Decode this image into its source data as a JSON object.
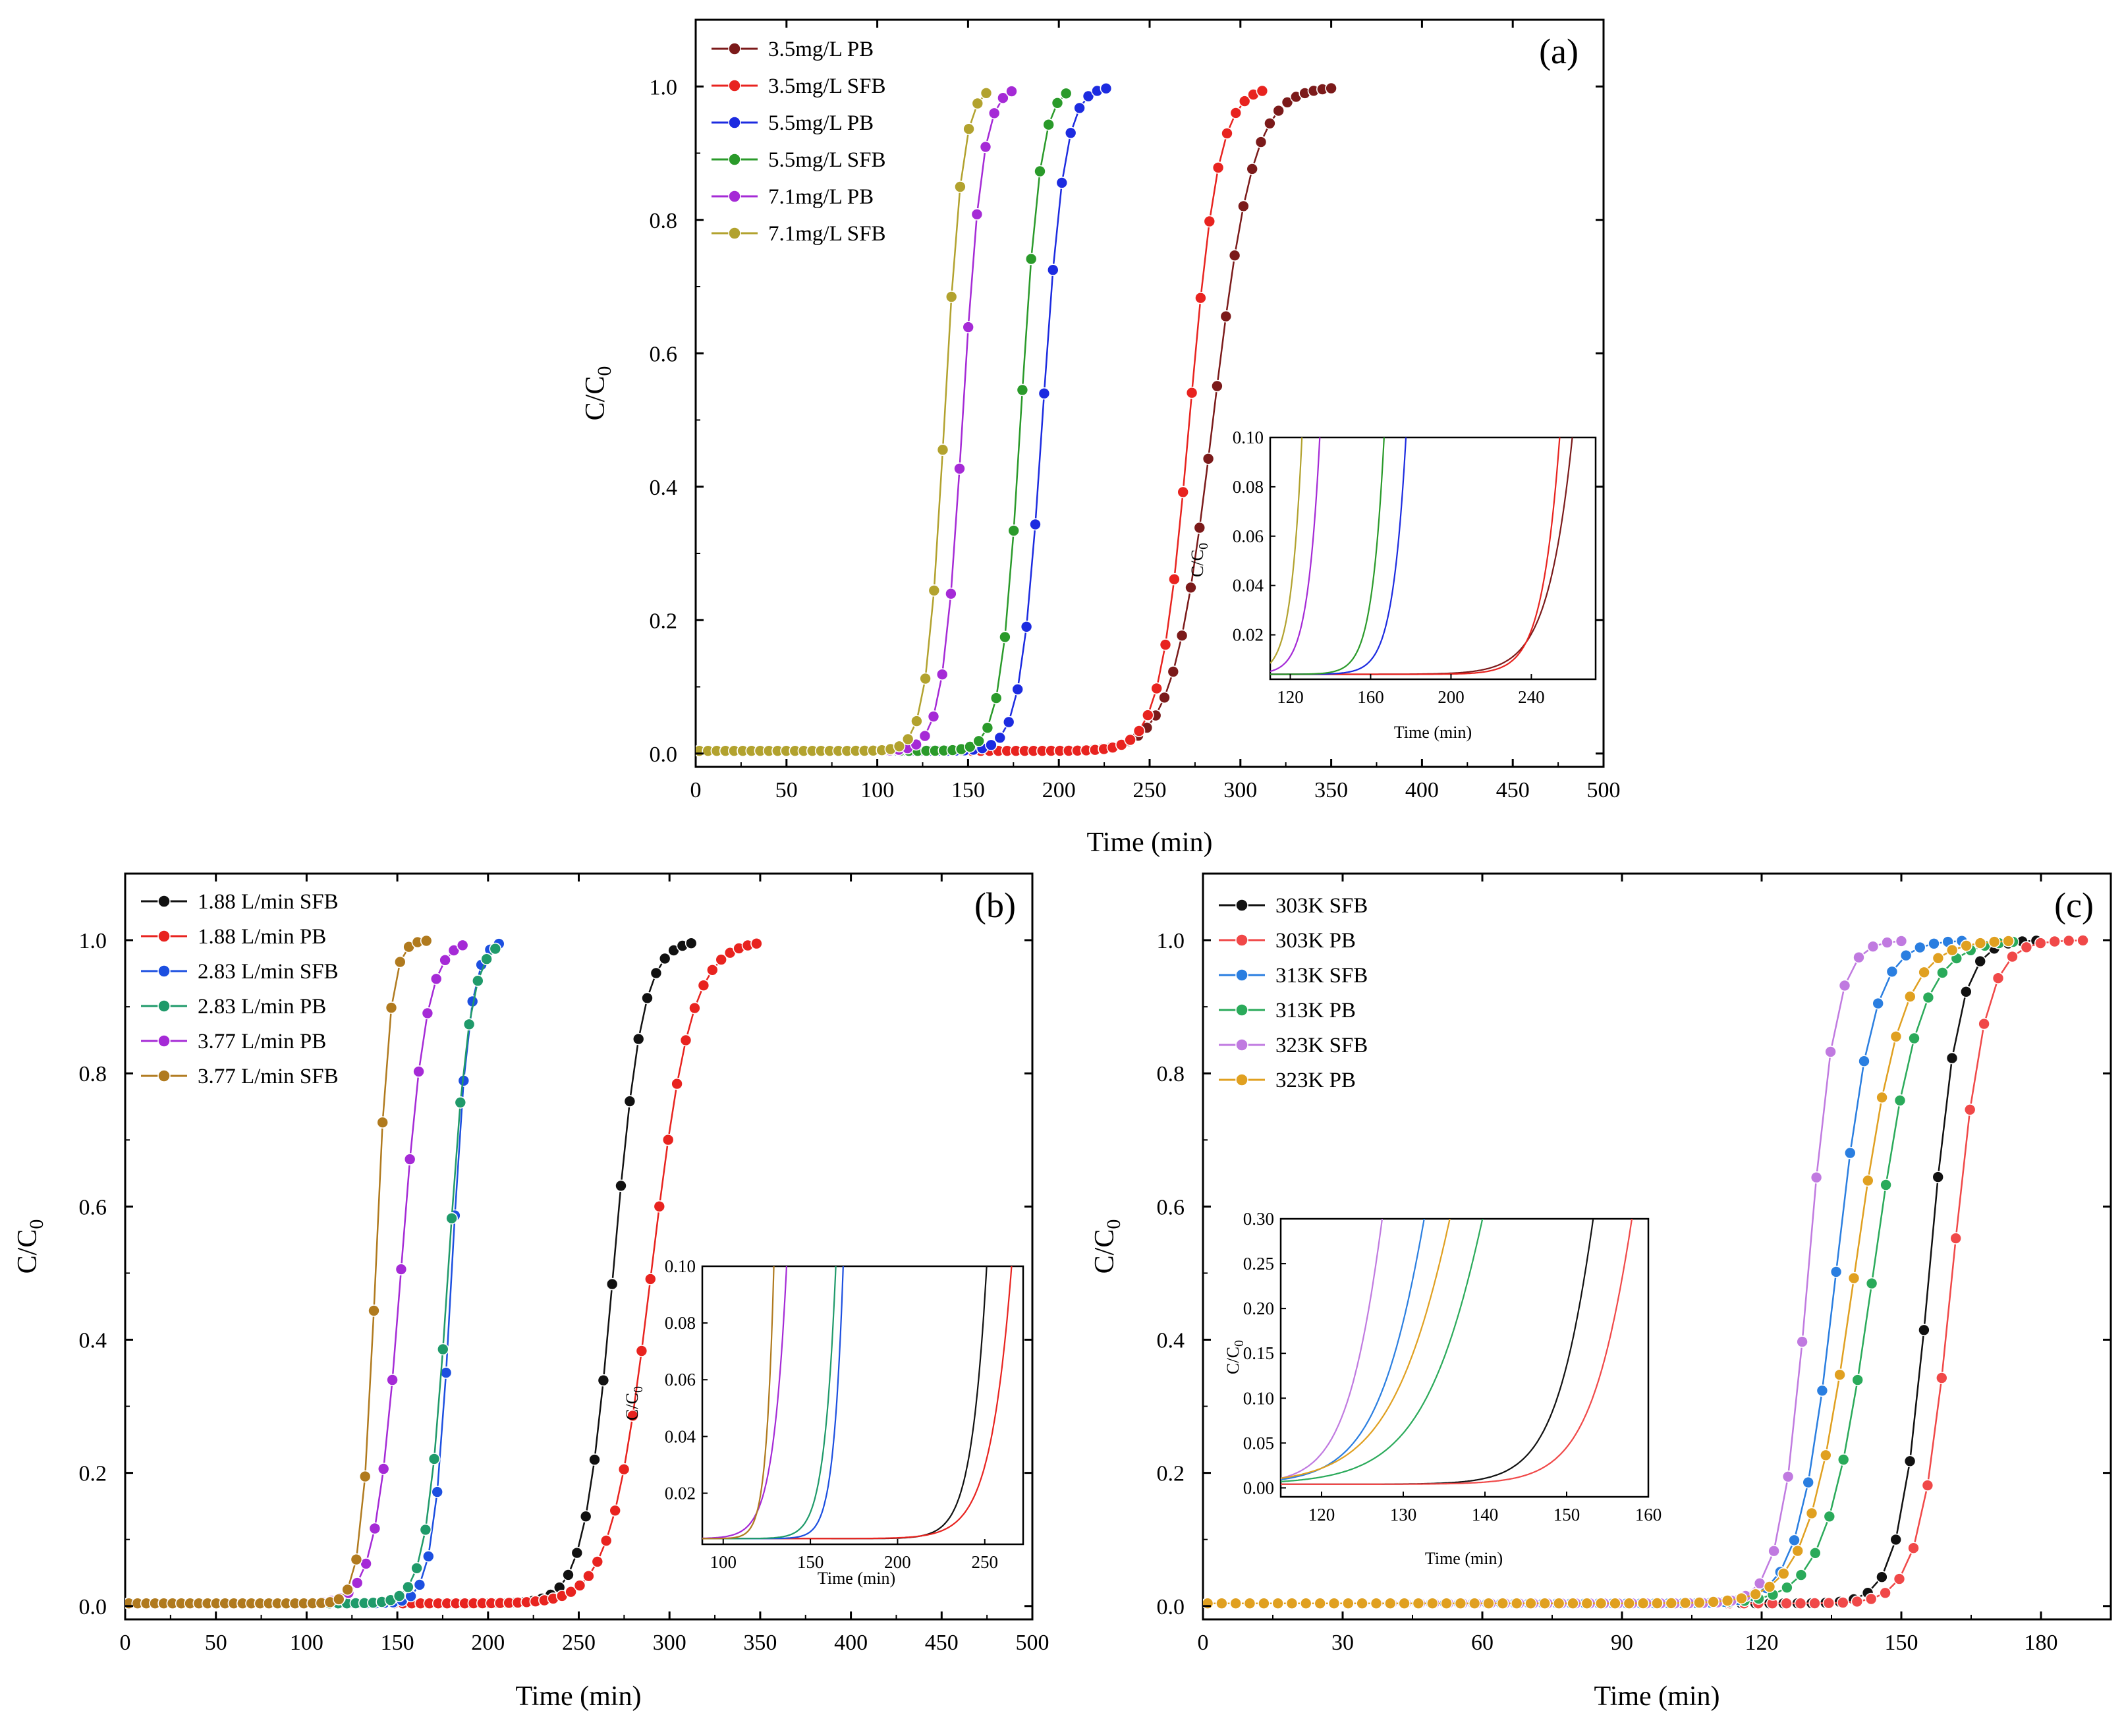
{
  "chart_data": [
    {
      "panel": "a",
      "type": "line",
      "panel_label": "(a)",
      "xlabel": "Time (min)",
      "ylabel": "C/C",
      "ylabel_sub": "0",
      "xlim": [
        0,
        500
      ],
      "ylim": [
        -0.02,
        1.1
      ],
      "xticks": [
        0,
        50,
        100,
        150,
        200,
        250,
        300,
        350,
        400,
        450,
        500
      ],
      "yticks": [
        "0.0",
        "0.2",
        "0.4",
        "0.6",
        "0.8",
        "1.0"
      ],
      "legend_position": "top-left",
      "series": [
        {
          "name": "3.5mg/L PB",
          "color": "#7b1a1a",
          "t0": 2,
          "tbt": 285,
          "width": 11,
          "end": 350,
          "points": 73
        },
        {
          "name": "3.5mg/L SFB",
          "color": "#e8231f",
          "t0": 2,
          "tbt": 272,
          "width": 8,
          "end": 312,
          "points": 65
        },
        {
          "name": "5.5mg/L PB",
          "color": "#1c2be0",
          "t0": 2,
          "tbt": 191,
          "width": 6,
          "end": 226,
          "points": 47
        },
        {
          "name": "5.5mg/L SFB",
          "color": "#2a9a2a",
          "t0": 2,
          "tbt": 179,
          "width": 5.5,
          "end": 204,
          "points": 43
        },
        {
          "name": "7.1mg/L PB",
          "color": "#a52ad6",
          "t0": 2,
          "tbt": 147,
          "width": 5.5,
          "end": 174,
          "points": 37
        },
        {
          "name": "7.1mg/L SFB",
          "color": "#b2a22e",
          "t0": 2,
          "tbt": 137,
          "width": 5,
          "end": 160,
          "points": 34
        }
      ],
      "inset": {
        "xlabel": "Time (min)",
        "ylabel": "C/C",
        "ylabel_sub": "0",
        "xlim": [
          110,
          272
        ],
        "ylim": [
          0.002,
          0.1
        ],
        "xticks": [
          120,
          160,
          200,
          240
        ],
        "yticks": [
          "0.02",
          "0.04",
          "0.06",
          "0.08",
          "0.10"
        ]
      }
    },
    {
      "panel": "b",
      "type": "line",
      "panel_label": "(b)",
      "xlabel": "Time (min)",
      "ylabel": "C/C",
      "ylabel_sub": "0",
      "xlim": [
        0,
        500
      ],
      "ylim": [
        -0.02,
        1.1
      ],
      "xticks": [
        0,
        50,
        100,
        150,
        200,
        250,
        300,
        350,
        400,
        450,
        500
      ],
      "yticks": [
        "0.0",
        "0.2",
        "0.4",
        "0.6",
        "0.8",
        "1.0"
      ],
      "legend_position": "top-left",
      "series": [
        {
          "name": "1.88 L/min SFB",
          "color": "#111111",
          "t0": 2,
          "tbt": 269,
          "width": 8,
          "end": 312,
          "points": 65
        },
        {
          "name": "1.88 L/min PB",
          "color": "#e8231f",
          "t0": 2,
          "tbt": 290,
          "width": 11,
          "end": 348,
          "points": 72
        },
        {
          "name": "2.83 L/min SFB",
          "color": "#1c4fe0",
          "t0": 2,
          "tbt": 180,
          "width": 5,
          "end": 206,
          "points": 43
        },
        {
          "name": "2.83 L/min PB",
          "color": "#1f9a6a",
          "t0": 2,
          "tbt": 178,
          "width": 6,
          "end": 204,
          "points": 43
        },
        {
          "name": "3.77 L/min PB",
          "color": "#a52ad6",
          "t0": 2,
          "tbt": 152,
          "width": 7,
          "end": 186,
          "points": 39
        },
        {
          "name": "3.77 L/min SFB",
          "color": "#b07a1e",
          "t0": 2,
          "tbt": 138,
          "width": 4,
          "end": 166,
          "points": 35
        }
      ],
      "inset": {
        "xlabel": "Time (min)",
        "ylabel": "C/C",
        "ylabel_sub": "0",
        "xlim": [
          88,
          272
        ],
        "ylim": [
          0.002,
          0.1
        ],
        "xticks": [
          100,
          150,
          200,
          250
        ],
        "yticks": [
          "0.02",
          "0.04",
          "0.06",
          "0.08",
          "0.10"
        ]
      }
    },
    {
      "panel": "c",
      "type": "line",
      "panel_label": "(c)",
      "xlabel": "Time (min)",
      "ylabel": "C/C",
      "ylabel_sub": "0",
      "xlim": [
        0,
        195
      ],
      "ylim": [
        -0.02,
        1.1
      ],
      "xticks": [
        0,
        30,
        60,
        90,
        120,
        150,
        180
      ],
      "yticks": [
        "0.0",
        "0.2",
        "0.4",
        "0.6",
        "0.8",
        "1.0"
      ],
      "legend_position": "top-left",
      "series": [
        {
          "name": "303K SFB",
          "color": "#111111",
          "t0": 1,
          "tbt": 156,
          "width": 3.2,
          "end": 179,
          "points": 60
        },
        {
          "name": "303K PB",
          "color": "#f04848",
          "t0": 1,
          "tbt": 161,
          "width": 3.5,
          "end": 189,
          "points": 63
        },
        {
          "name": "313K SFB",
          "color": "#2a7ee0",
          "t0": 1,
          "tbt": 136,
          "width": 4,
          "end": 163,
          "points": 55
        },
        {
          "name": "313K PB",
          "color": "#2aaa5a",
          "t0": 1,
          "tbt": 144,
          "width": 5,
          "end": 174,
          "points": 58
        },
        {
          "name": "323K SFB",
          "color": "#c07ae0",
          "t0": 1,
          "tbt": 130,
          "width": 3,
          "end": 150,
          "points": 50
        },
        {
          "name": "323K PB",
          "color": "#e0a020",
          "t0": 1,
          "tbt": 140,
          "width": 5,
          "end": 173,
          "points": 58
        }
      ],
      "inset": {
        "xlabel": "Time (min)",
        "ylabel": "C/C",
        "ylabel_sub": "0",
        "xlim": [
          115,
          160
        ],
        "ylim": [
          -0.01,
          0.3
        ],
        "xticks": [
          120,
          130,
          140,
          150,
          160
        ],
        "yticks": [
          "0.00",
          "0.05",
          "0.10",
          "0.15",
          "0.20",
          "0.25",
          "0.30"
        ]
      }
    }
  ]
}
